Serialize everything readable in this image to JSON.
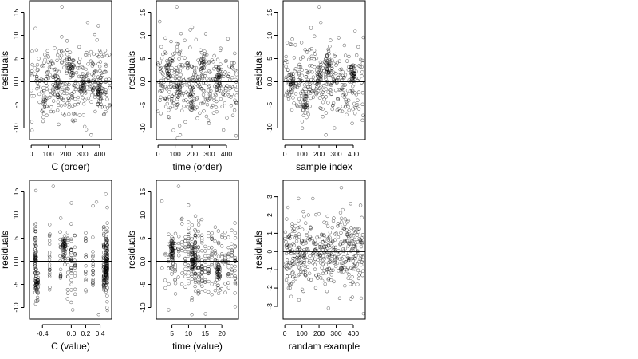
{
  "chart_data": [
    {
      "type": "scatter",
      "xlabel": "C (order)",
      "ylabel": "residuals",
      "xticks": [
        0,
        100,
        200,
        300,
        400
      ],
      "yticks": [
        -10,
        -5,
        0,
        5,
        10,
        15
      ],
      "ytick_labels": [
        "-10",
        "-5",
        "0.0",
        "5",
        "10",
        "15"
      ],
      "xlim": [
        -10,
        470
      ],
      "ylim": [
        -12.5,
        17.5
      ],
      "reference_line_y": 0,
      "n_points": 470,
      "y_spread": 4.0,
      "clusters": [
        [
          80,
          -5
        ],
        [
          150,
          0
        ],
        [
          220,
          4
        ],
        [
          240,
          3
        ],
        [
          300,
          -1
        ],
        [
          400,
          -2
        ]
      ],
      "outliers": [
        [
          180,
          16.2
        ],
        [
          330,
          12.8
        ],
        [
          350,
          -11.5
        ],
        [
          5,
          -10.5
        ],
        [
          25,
          11.5
        ]
      ]
    },
    {
      "type": "scatter",
      "xlabel": "time (order)",
      "ylabel": "residuals",
      "xticks": [
        0,
        100,
        200,
        300,
        400
      ],
      "yticks": [
        -10,
        -5,
        0,
        5,
        10,
        15
      ],
      "ytick_labels": [
        "-10",
        "-5",
        "0.0",
        "5",
        "10",
        "15"
      ],
      "xlim": [
        -10,
        470
      ],
      "ylim": [
        -12.5,
        17.5
      ],
      "reference_line_y": 0,
      "n_points": 470,
      "y_spread": 4.0,
      "clusters": [
        [
          60,
          3
        ],
        [
          120,
          -2
        ],
        [
          200,
          -4
        ],
        [
          260,
          4
        ],
        [
          350,
          1
        ]
      ],
      "outliers": [
        [
          110,
          16.2
        ],
        [
          10,
          13
        ],
        [
          200,
          11.8
        ],
        [
          130,
          -11.5
        ],
        [
          90,
          -10.5
        ]
      ]
    },
    {
      "type": "scatter",
      "xlabel": "sample index",
      "ylabel": "residuals",
      "xticks": [
        0,
        100,
        200,
        300,
        400
      ],
      "yticks": [
        -10,
        -5,
        0,
        5,
        10,
        15
      ],
      "ytick_labels": [
        "-10",
        "-5",
        "0.0",
        "5",
        "10",
        "15"
      ],
      "xlim": [
        -10,
        470
      ],
      "ylim": [
        -12.5,
        17.5
      ],
      "reference_line_y": 0,
      "n_points": 470,
      "y_spread": 4.0,
      "clusters": [
        [
          40,
          0
        ],
        [
          120,
          -5
        ],
        [
          200,
          1
        ],
        [
          250,
          4
        ],
        [
          400,
          2
        ]
      ],
      "outliers": [
        [
          200,
          16.2
        ],
        [
          210,
          12.8
        ],
        [
          240,
          -11.5
        ],
        [
          290,
          -10
        ],
        [
          410,
          11
        ]
      ]
    },
    {
      "type": "scatter",
      "xlabel": "C (value)",
      "ylabel": "residuals",
      "xticks": [
        -0.4,
        0.0,
        0.2,
        0.4
      ],
      "xtick_labels": [
        "-0.4",
        "0.0",
        "0.2",
        "0.4"
      ],
      "yticks": [
        -10,
        -5,
        0,
        5,
        10,
        15
      ],
      "ytick_labels": [
        "-10",
        "-5",
        "0.0",
        "5",
        "10",
        "15"
      ],
      "xlim": [
        -0.58,
        0.56
      ],
      "ylim": [
        -12.5,
        17.5
      ],
      "reference_line_y": 0,
      "n_points": 470,
      "y_spread": 4.0,
      "x_columns": [
        -0.5,
        -0.49,
        -0.3,
        -0.15,
        -0.05,
        0.0,
        0.05,
        0.2,
        0.3,
        0.45,
        0.48,
        0.5
      ],
      "column_weights": [
        6,
        5,
        2,
        2,
        2,
        3,
        2,
        2,
        2,
        4,
        5,
        6
      ],
      "clusters": [
        [
          -0.48,
          -5
        ],
        [
          0.47,
          -3
        ],
        [
          -0.1,
          3
        ]
      ],
      "outliers": [
        [
          -0.25,
          16.2
        ],
        [
          0.35,
          12.8
        ],
        [
          0.38,
          -11.5
        ],
        [
          0.02,
          -10.5
        ]
      ]
    },
    {
      "type": "scatter",
      "xlabel": "time (value)",
      "ylabel": "residuals",
      "xticks": [
        5,
        10,
        15,
        20
      ],
      "xtick_labels": [
        "5",
        "10",
        "15",
        "20"
      ],
      "yticks": [
        -10,
        -5,
        0,
        5,
        10,
        15
      ],
      "ytick_labels": [
        "-10",
        "-5",
        "0.0",
        "5",
        "10",
        "15"
      ],
      "xlim": [
        0.3,
        25
      ],
      "ylim": [
        -12.5,
        17.5
      ],
      "reference_line_y": 0,
      "n_points": 470,
      "y_spread": 4.0,
      "x_columns": [
        2,
        3,
        4,
        5,
        6,
        7,
        8,
        9,
        10,
        11,
        12,
        13,
        14,
        15,
        16,
        17,
        18,
        19,
        20,
        21,
        22,
        23,
        24
      ],
      "column_weights": [
        1,
        1,
        2,
        3,
        3,
        2,
        2,
        2,
        3,
        4,
        6,
        4,
        3,
        2,
        2,
        2,
        3,
        2,
        2,
        2,
        3,
        2,
        4
      ],
      "clusters": [
        [
          5,
          2
        ],
        [
          11.5,
          0
        ],
        [
          19,
          -2
        ]
      ],
      "outliers": [
        [
          7,
          16.2
        ],
        [
          2,
          13
        ],
        [
          11,
          -11.5
        ],
        [
          4,
          -10.5
        ]
      ]
    },
    {
      "type": "scatter",
      "xlabel": "randam example",
      "ylabel": "residuals",
      "xticks": [
        0,
        100,
        200,
        300,
        400
      ],
      "yticks": [
        -3,
        -2,
        -1,
        0,
        1,
        2,
        3
      ],
      "ytick_labels": [
        "-3",
        "-2",
        "-1",
        "0",
        "1",
        "2",
        "3"
      ],
      "xlim": [
        -10,
        470
      ],
      "ylim": [
        -3.7,
        3.9
      ],
      "reference_line_y": 0,
      "n_points": 450,
      "y_spread": 1.0,
      "clusters": [],
      "outliers": [
        [
          330,
          3.5
        ],
        [
          255,
          -3.1
        ],
        [
          460,
          -3.4
        ],
        [
          395,
          -2.5
        ],
        [
          80,
          2.9
        ]
      ]
    }
  ]
}
